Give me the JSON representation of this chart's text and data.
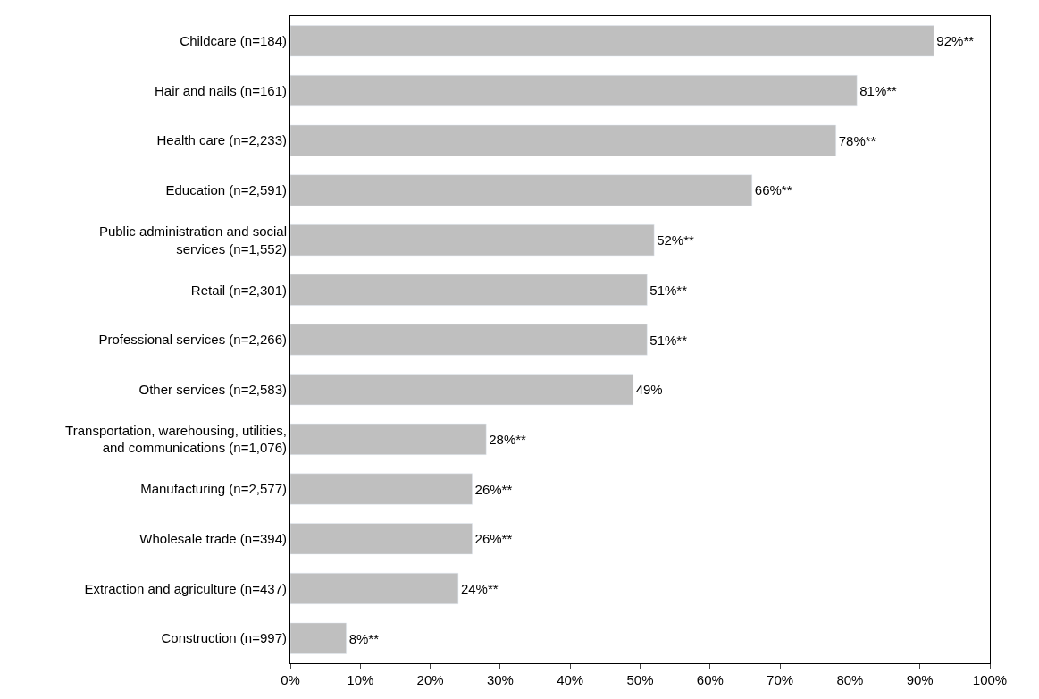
{
  "chart_data": {
    "type": "bar",
    "orientation": "horizontal",
    "categories": [
      "Childcare (n=184)",
      "Hair and nails (n=161)",
      "Health care (n=2,233)",
      "Education (n=2,591)",
      "Public administration and social services (n=1,552)",
      "Retail (n=2,301)",
      "Professional services (n=2,266)",
      "Other services (n=2,583)",
      "Transportation, warehousing, utilities, and communications (n=1,076)",
      "Manufacturing (n=2,577)",
      "Wholesale trade (n=394)",
      "Extraction and agriculture (n=437)",
      "Construction (n=997)"
    ],
    "values": [
      92,
      81,
      78,
      66,
      52,
      51,
      51,
      49,
      28,
      26,
      26,
      24,
      8
    ],
    "value_labels": [
      "92%**",
      "81%**",
      "78%**",
      "66%**",
      "52%**",
      "51%**",
      "51%**",
      "49%",
      "28%**",
      "26%**",
      "26%**",
      "24%**",
      "8%**"
    ],
    "color": "#bfbfbf",
    "xlim": [
      0,
      100
    ],
    "xticks": [
      {
        "value": 0,
        "label": "0%"
      },
      {
        "value": 10,
        "label": "10%"
      },
      {
        "value": 20,
        "label": "20%"
      },
      {
        "value": 30,
        "label": "30%"
      },
      {
        "value": 40,
        "label": "40%"
      },
      {
        "value": 50,
        "label": "50%"
      },
      {
        "value": 60,
        "label": "60%"
      },
      {
        "value": 70,
        "label": "70%"
      },
      {
        "value": 80,
        "label": "80%"
      },
      {
        "value": 90,
        "label": "90%"
      },
      {
        "value": 100,
        "label": "100%"
      }
    ],
    "legend": false
  }
}
